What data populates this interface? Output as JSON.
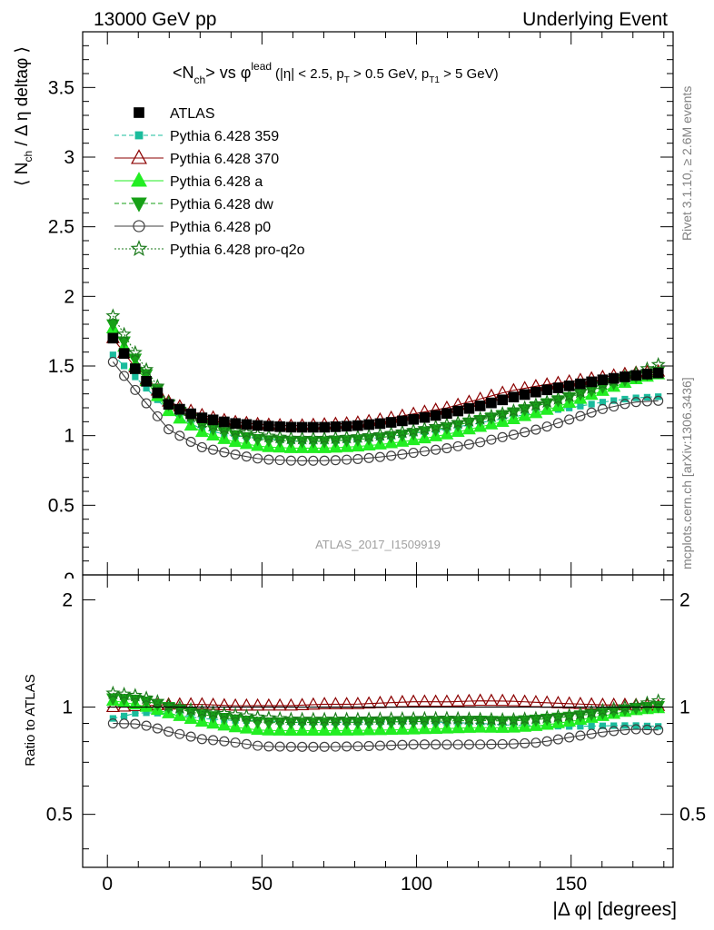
{
  "header": {
    "left": "13000 GeV pp",
    "right": "Underlying Event"
  },
  "title": {
    "main": "<N",
    "sub": "ch",
    "mid": "> vs ",
    "phi": "φ",
    "sup": "lead",
    "cuts": "(|η| < 2.5, p",
    "cut_sub1": "T",
    "cuts2": " > 0.5 GeV, p",
    "cut_sub2": "T1",
    "cuts3": " > 5 GeV)"
  },
  "side_text": {
    "rivet": "Rivet 3.1.10, ≥ 2.6M events",
    "mcplots": "mcplots.cern.ch [arXiv:1306.3436]"
  },
  "analysis_id": "ATLAS_2017_I1509919",
  "axes": {
    "ylabel_top": "⟨ N_ch / Δ η deltaφ ⟩",
    "ylabel_bottom": "Ratio to ATLAS",
    "xlabel": "|Δ φ| [degrees]"
  },
  "colors": {
    "atlas": "#000000",
    "p359": "#1abc9c",
    "p370": "#8b0000",
    "pa": "#22ee22",
    "pdw": "#16a016",
    "pp0": "#404040",
    "pq2o": "#1a7a1a"
  },
  "chart_data": [
    {
      "type": "scatter",
      "title": "<Nch> vs φlead (|η| < 2.5, pT > 0.5 GeV, pT1 > 5 GeV)",
      "xlabel": "",
      "ylabel": "⟨ Nch / Δ η deltaφ ⟩",
      "xlim": [
        -8,
        183
      ],
      "ylim": [
        0,
        3.9
      ],
      "yticks": [
        0.5,
        1,
        1.5,
        2,
        2.5,
        3,
        3.5
      ],
      "ytick_labels": [
        "0.5",
        "1",
        "1.5",
        "2",
        "2.5",
        "3",
        "3.5"
      ],
      "legend_position": "top-left",
      "series": [
        {
          "name": "ATLAS",
          "marker": "square-filled",
          "color": "#000000",
          "ctrl": [
            [
              1.8,
              1.7
            ],
            [
              10,
              1.45
            ],
            [
              20,
              1.22
            ],
            [
              30,
              1.13
            ],
            [
              40,
              1.09
            ],
            [
              50,
              1.07
            ],
            [
              60,
              1.06
            ],
            [
              70,
              1.06
            ],
            [
              80,
              1.07
            ],
            [
              90,
              1.09
            ],
            [
              100,
              1.12
            ],
            [
              110,
              1.16
            ],
            [
              120,
              1.21
            ],
            [
              130,
              1.27
            ],
            [
              140,
              1.32
            ],
            [
              150,
              1.36
            ],
            [
              160,
              1.4
            ],
            [
              170,
              1.43
            ],
            [
              178,
              1.45
            ]
          ]
        },
        {
          "name": "Pythia 6.428 359",
          "marker": "square-small",
          "color": "#1abc9c",
          "dash": "5,3",
          "ctrl": [
            [
              1.8,
              1.58
            ],
            [
              10,
              1.4
            ],
            [
              20,
              1.17
            ],
            [
              30,
              1.05
            ],
            [
              40,
              1.0
            ],
            [
              50,
              0.98
            ],
            [
              60,
              0.96
            ],
            [
              70,
              0.96
            ],
            [
              80,
              0.97
            ],
            [
              90,
              0.99
            ],
            [
              100,
              1.02
            ],
            [
              110,
              1.05
            ],
            [
              120,
              1.09
            ],
            [
              130,
              1.13
            ],
            [
              140,
              1.17
            ],
            [
              150,
              1.2
            ],
            [
              160,
              1.24
            ],
            [
              170,
              1.27
            ],
            [
              178,
              1.28
            ]
          ]
        },
        {
          "name": "Pythia 6.428 370",
          "marker": "triangle-up-open",
          "color": "#8b0000",
          "ctrl": [
            [
              1.8,
              1.7
            ],
            [
              10,
              1.46
            ],
            [
              20,
              1.24
            ],
            [
              30,
              1.15
            ],
            [
              40,
              1.1
            ],
            [
              50,
              1.08
            ],
            [
              60,
              1.07
            ],
            [
              70,
              1.08
            ],
            [
              80,
              1.09
            ],
            [
              90,
              1.12
            ],
            [
              100,
              1.16
            ],
            [
              110,
              1.2
            ],
            [
              120,
              1.26
            ],
            [
              130,
              1.32
            ],
            [
              140,
              1.36
            ],
            [
              150,
              1.39
            ],
            [
              160,
              1.42
            ],
            [
              170,
              1.45
            ],
            [
              178,
              1.46
            ]
          ]
        },
        {
          "name": "Pythia 6.428 a",
          "marker": "triangle-up-filled",
          "color": "#22ee22",
          "ctrl": [
            [
              1.8,
              1.77
            ],
            [
              10,
              1.47
            ],
            [
              20,
              1.17
            ],
            [
              30,
              1.03
            ],
            [
              40,
              0.96
            ],
            [
              50,
              0.92
            ],
            [
              60,
              0.91
            ],
            [
              70,
              0.91
            ],
            [
              80,
              0.92
            ],
            [
              90,
              0.94
            ],
            [
              100,
              0.97
            ],
            [
              110,
              1.01
            ],
            [
              120,
              1.06
            ],
            [
              130,
              1.11
            ],
            [
              140,
              1.17
            ],
            [
              150,
              1.24
            ],
            [
              160,
              1.32
            ],
            [
              170,
              1.4
            ],
            [
              178,
              1.44
            ]
          ]
        },
        {
          "name": "Pythia 6.428 dw",
          "marker": "triangle-down-filled",
          "color": "#16a016",
          "dash": "5,3",
          "ctrl": [
            [
              1.8,
              1.8
            ],
            [
              10,
              1.52
            ],
            [
              20,
              1.22
            ],
            [
              30,
              1.08
            ],
            [
              40,
              1.01
            ],
            [
              50,
              0.97
            ],
            [
              60,
              0.96
            ],
            [
              70,
              0.96
            ],
            [
              80,
              0.97
            ],
            [
              90,
              0.99
            ],
            [
              100,
              1.02
            ],
            [
              110,
              1.06
            ],
            [
              120,
              1.11
            ],
            [
              130,
              1.16
            ],
            [
              140,
              1.22
            ],
            [
              150,
              1.28
            ],
            [
              160,
              1.35
            ],
            [
              170,
              1.42
            ],
            [
              178,
              1.46
            ]
          ]
        },
        {
          "name": "Pythia 6.428 p0",
          "marker": "circle-open",
          "color": "#404040",
          "ctrl": [
            [
              1.8,
              1.53
            ],
            [
              10,
              1.3
            ],
            [
              20,
              1.04
            ],
            [
              30,
              0.92
            ],
            [
              40,
              0.87
            ],
            [
              50,
              0.83
            ],
            [
              60,
              0.82
            ],
            [
              70,
              0.82
            ],
            [
              80,
              0.83
            ],
            [
              90,
              0.85
            ],
            [
              100,
              0.88
            ],
            [
              110,
              0.91
            ],
            [
              120,
              0.95
            ],
            [
              130,
              1.0
            ],
            [
              140,
              1.05
            ],
            [
              150,
              1.12
            ],
            [
              160,
              1.19
            ],
            [
              170,
              1.24
            ],
            [
              178,
              1.25
            ]
          ]
        },
        {
          "name": "Pythia 6.428 pro-q2o",
          "marker": "star-open",
          "color": "#1a7a1a",
          "dash": "2,2",
          "ctrl": [
            [
              1.8,
              1.86
            ],
            [
              10,
              1.56
            ],
            [
              20,
              1.23
            ],
            [
              30,
              1.1
            ],
            [
              40,
              1.04
            ],
            [
              50,
              1.0
            ],
            [
              60,
              0.98
            ],
            [
              70,
              0.98
            ],
            [
              80,
              0.99
            ],
            [
              90,
              1.01
            ],
            [
              100,
              1.04
            ],
            [
              110,
              1.08
            ],
            [
              120,
              1.12
            ],
            [
              130,
              1.17
            ],
            [
              140,
              1.23
            ],
            [
              150,
              1.29
            ],
            [
              160,
              1.37
            ],
            [
              170,
              1.44
            ],
            [
              178,
              1.51
            ]
          ]
        }
      ]
    },
    {
      "type": "scatter",
      "title": "",
      "xlabel": "|Δ φ| [degrees]",
      "ylabel": "Ratio to ATLAS",
      "xlim": [
        -8,
        183
      ],
      "log_y": true,
      "ylim": [
        0.355,
        2.35
      ],
      "xticks": [
        0,
        50,
        100,
        150
      ],
      "xtick_labels": [
        "0",
        "50",
        "100",
        "150"
      ],
      "yticks": [
        0.5,
        1,
        2
      ],
      "ytick_labels": [
        "0.5",
        "1",
        "2"
      ]
    }
  ]
}
